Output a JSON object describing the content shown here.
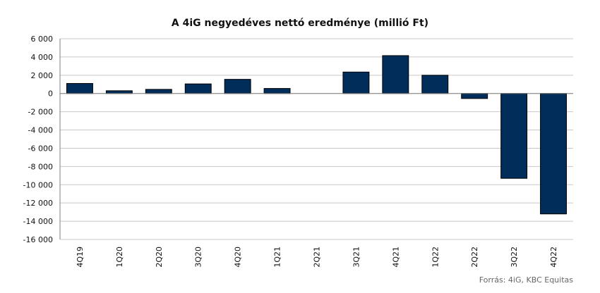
{
  "chart_data": {
    "type": "bar",
    "title": "A 4iG negyedéves nettó eredménye (millió Ft)",
    "source": "Forrás: 4iG, KBC Equitas",
    "categories": [
      "4Q19",
      "1Q20",
      "2Q20",
      "3Q20",
      "4Q20",
      "1Q21",
      "2Q21",
      "3Q21",
      "4Q21",
      "1Q22",
      "2Q22",
      "3Q22",
      "4Q22"
    ],
    "values": [
      1100,
      300,
      450,
      1050,
      1550,
      550,
      0,
      2350,
      4150,
      2000,
      -550,
      -9300,
      -13200
    ],
    "y_ticks": [
      "6 000",
      "4 000",
      "2 000",
      "0",
      "-2 000",
      "-4 000",
      "-6 000",
      "-8 000",
      "-10 000",
      "-12 000",
      "-14 000",
      "-16 000"
    ],
    "ylim": [
      -16000,
      6000
    ],
    "grid": true,
    "bar_color": "#002D5A"
  }
}
